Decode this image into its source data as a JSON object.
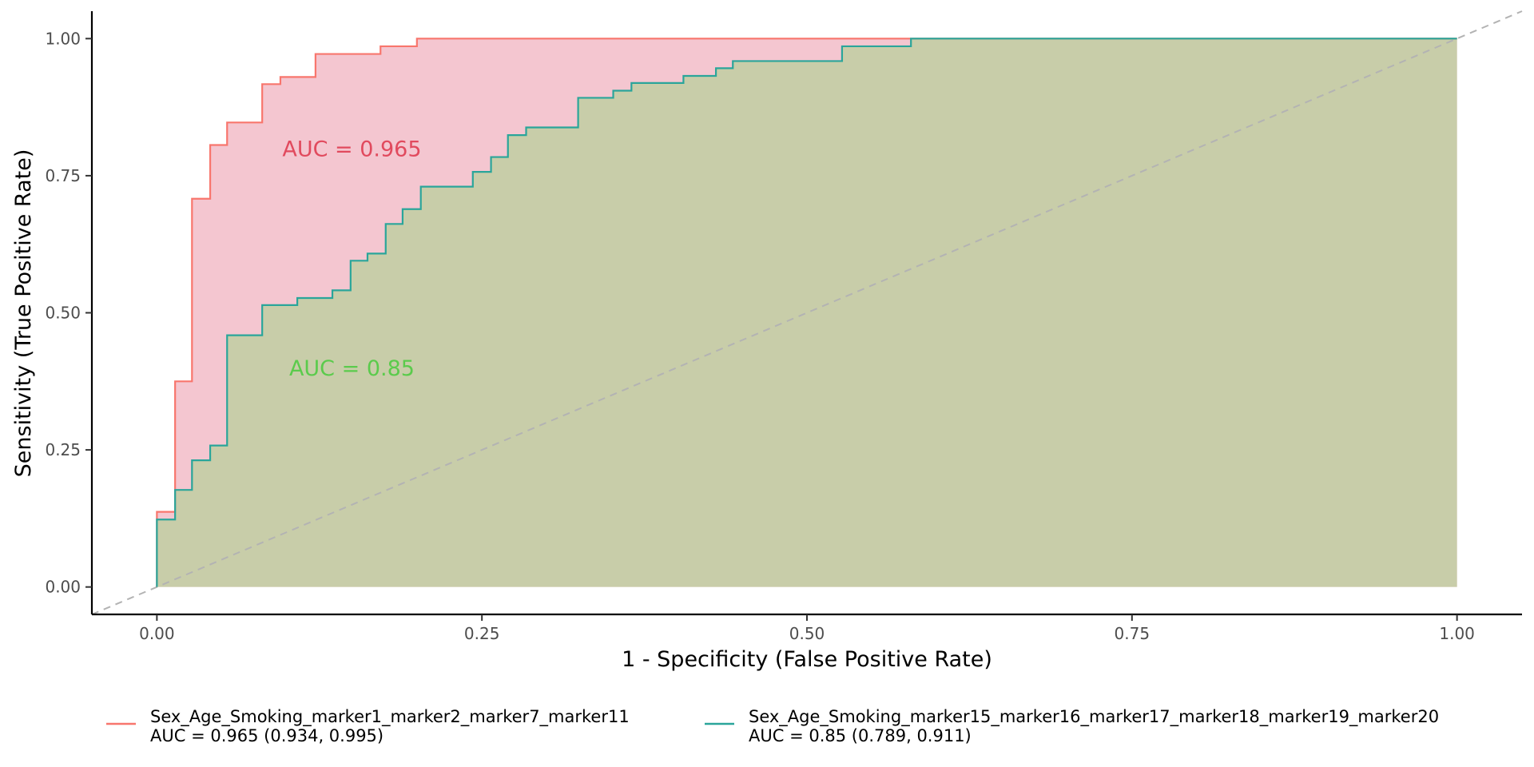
{
  "chart_data": {
    "type": "line",
    "xlabel": "1 - Specificity (False Positive Rate)",
    "ylabel": "Sensitivity (True Positive Rate)",
    "xlim": [
      -0.05,
      1.05
    ],
    "ylim": [
      -0.05,
      1.05
    ],
    "x_ticks": [
      0,
      0.25,
      0.5,
      0.75,
      1
    ],
    "x_tick_labels": [
      "0.00",
      "0.25",
      "0.50",
      "0.75",
      "1.00"
    ],
    "y_ticks": [
      0,
      0.25,
      0.5,
      0.75,
      1
    ],
    "y_tick_labels": [
      "0.00",
      "0.25",
      "0.50",
      "0.75",
      "1.00"
    ],
    "grid": false,
    "legend_position": "bottom",
    "reference_line": {
      "x": [
        -0.05,
        1.05
      ],
      "y": [
        -0.05,
        1.05
      ],
      "style": "dashed",
      "color": "#b3b3b3"
    },
    "series": [
      {
        "name": "Sex_Age_Smoking_marker1_marker2_marker7_marker11",
        "legend_line2": "AUC = 0.965 (0.934, 0.995)",
        "annotation": "AUC = 0.965",
        "annotation_pos": [
          0.15,
          0.8
        ],
        "color": "#F8766D",
        "fill": "#F4C6D0",
        "annotation_color": "#E14A5E",
        "points": [
          [
            0,
            0
          ],
          [
            0,
            0.137
          ],
          [
            0.014,
            0.137
          ],
          [
            0.014,
            0.375
          ],
          [
            0.027,
            0.375
          ],
          [
            0.027,
            0.708
          ],
          [
            0.041,
            0.708
          ],
          [
            0.041,
            0.806
          ],
          [
            0.054,
            0.806
          ],
          [
            0.054,
            0.847
          ],
          [
            0.081,
            0.847
          ],
          [
            0.081,
            0.917
          ],
          [
            0.095,
            0.917
          ],
          [
            0.095,
            0.93
          ],
          [
            0.122,
            0.93
          ],
          [
            0.122,
            0.972
          ],
          [
            0.172,
            0.972
          ],
          [
            0.172,
            0.986
          ],
          [
            0.2,
            0.986
          ],
          [
            0.2,
            1
          ],
          [
            0.58,
            1
          ],
          [
            1,
            1
          ]
        ]
      },
      {
        "name": "Sex_Age_Smoking_marker15_marker16_marker17_marker18_marker19_marker20",
        "legend_line2": "AUC = 0.85 (0.789, 0.911)",
        "annotation": "AUC = 0.85",
        "annotation_pos": [
          0.15,
          0.4
        ],
        "color": "#2AA59A",
        "fill": "#C8CDA9",
        "annotation_color": "#5BCB4C",
        "points": [
          [
            0,
            0
          ],
          [
            0,
            0.123
          ],
          [
            0.014,
            0.123
          ],
          [
            0.014,
            0.177
          ],
          [
            0.027,
            0.177
          ],
          [
            0.027,
            0.231
          ],
          [
            0.041,
            0.231
          ],
          [
            0.041,
            0.258
          ],
          [
            0.054,
            0.258
          ],
          [
            0.054,
            0.459
          ],
          [
            0.081,
            0.459
          ],
          [
            0.081,
            0.514
          ],
          [
            0.108,
            0.514
          ],
          [
            0.108,
            0.527
          ],
          [
            0.135,
            0.527
          ],
          [
            0.135,
            0.541
          ],
          [
            0.149,
            0.541
          ],
          [
            0.149,
            0.595
          ],
          [
            0.162,
            0.595
          ],
          [
            0.162,
            0.608
          ],
          [
            0.176,
            0.608
          ],
          [
            0.176,
            0.662
          ],
          [
            0.189,
            0.662
          ],
          [
            0.189,
            0.689
          ],
          [
            0.203,
            0.689
          ],
          [
            0.203,
            0.73
          ],
          [
            0.243,
            0.73
          ],
          [
            0.243,
            0.757
          ],
          [
            0.257,
            0.757
          ],
          [
            0.257,
            0.784
          ],
          [
            0.27,
            0.784
          ],
          [
            0.27,
            0.824
          ],
          [
            0.284,
            0.824
          ],
          [
            0.284,
            0.838
          ],
          [
            0.324,
            0.838
          ],
          [
            0.324,
            0.892
          ],
          [
            0.351,
            0.892
          ],
          [
            0.351,
            0.905
          ],
          [
            0.365,
            0.905
          ],
          [
            0.365,
            0.919
          ],
          [
            0.405,
            0.919
          ],
          [
            0.405,
            0.932
          ],
          [
            0.43,
            0.932
          ],
          [
            0.43,
            0.946
          ],
          [
            0.443,
            0.946
          ],
          [
            0.443,
            0.959
          ],
          [
            0.527,
            0.959
          ],
          [
            0.527,
            0.986
          ],
          [
            0.58,
            0.986
          ],
          [
            0.58,
            1
          ],
          [
            1,
            1
          ]
        ]
      }
    ]
  }
}
